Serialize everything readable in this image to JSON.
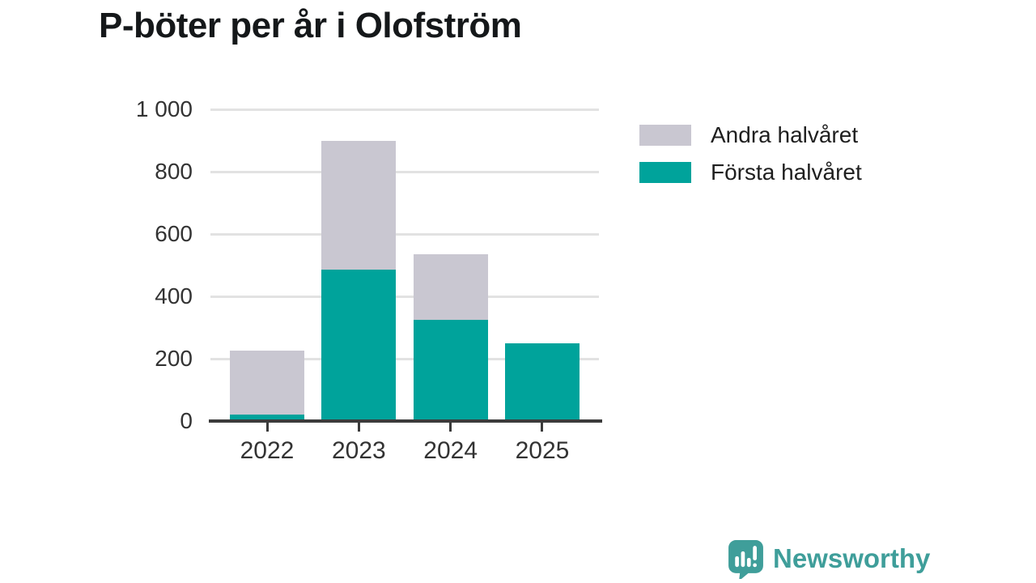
{
  "title": "P-böter per år i Olofström",
  "legend": {
    "items": [
      {
        "label": "Andra halvåret",
        "color": "#c9c7d1"
      },
      {
        "label": "Första halvåret",
        "color": "#00a39b"
      }
    ]
  },
  "chart_data": {
    "type": "bar",
    "stacked": true,
    "title": "P-böter per år i Olofström",
    "categories": [
      "2022",
      "2023",
      "2024",
      "2025"
    ],
    "series": [
      {
        "name": "Första halvåret",
        "color": "#00a39b",
        "values": [
          20,
          485,
          325,
          250
        ]
      },
      {
        "name": "Andra halvåret",
        "color": "#c9c7d1",
        "values": [
          205,
          415,
          210,
          0
        ]
      }
    ],
    "ylim": [
      0,
      1000
    ],
    "yticks": [
      0,
      200,
      400,
      600,
      800,
      1000
    ],
    "ytick_labels": [
      "0",
      "200",
      "400",
      "600",
      "800",
      "1 000"
    ],
    "grid": true,
    "legend_position": "right"
  },
  "branding": {
    "logo_text": "Newsworthy",
    "logo_icon": "bar-chart-speech-bubble-icon",
    "logo_color": "#3f9e9a"
  },
  "colors": {
    "first_half": "#00a39b",
    "second_half": "#c9c7d1",
    "background": "#ffffff",
    "axis_line": "#3b3b3b",
    "grid_line": "#e2e2e2",
    "tick_label": "#333333",
    "title_text": "#15181a"
  }
}
